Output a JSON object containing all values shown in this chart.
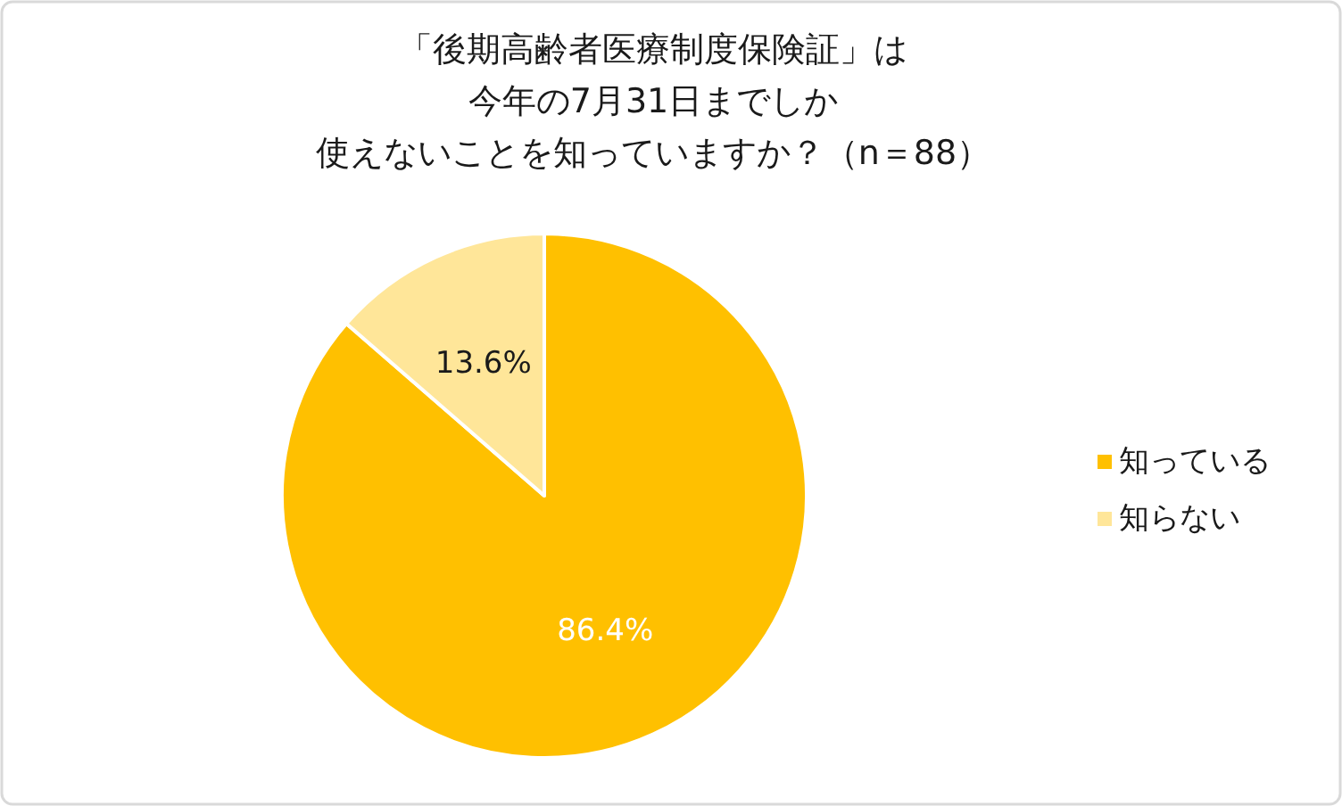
{
  "chart_data": {
    "type": "pie",
    "title": [
      "「後期高齢者医療制度保険証」は",
      "今年の7月31日までしか",
      "使えないことを知っていますか？（n＝88）"
    ],
    "categories": [
      "知っている",
      "知らない"
    ],
    "values": [
      86.4,
      13.6
    ],
    "colors": [
      "#ffc000",
      "#ffe699"
    ],
    "value_labels": [
      "86.4%",
      "13.6%"
    ],
    "legend": "right"
  }
}
